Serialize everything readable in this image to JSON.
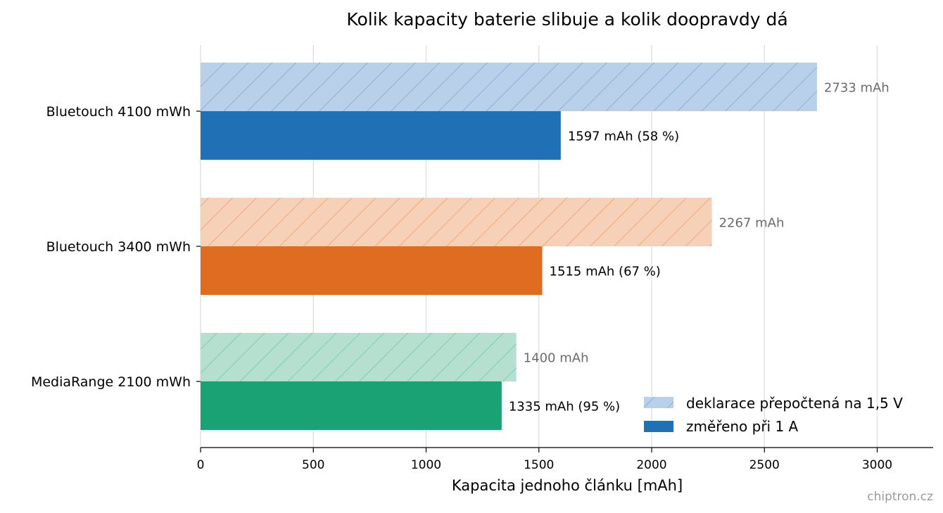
{
  "chart_data": {
    "type": "bar",
    "orientation": "horizontal",
    "title": "Kolik kapacity baterie slibuje a kolik doopravdy dá",
    "xlabel": "Kapacita jednoho článku [mAh]",
    "ylabel": "",
    "xlim": [
      0,
      3250
    ],
    "xticks": [
      0,
      500,
      1000,
      1500,
      2000,
      2500,
      3000
    ],
    "grid": "vertical",
    "legend_position": "bottom-right",
    "categories": [
      "Bluetouch 4100 mWh",
      "Bluetouch 3400 mWh",
      "MediaRange 2100 mWh"
    ],
    "series": [
      {
        "name": "deklarace přepočtená na 1,5 V",
        "style": "hatched-light",
        "values": [
          2733,
          2267,
          1400
        ],
        "labels": [
          "2733 mAh",
          "2267 mAh",
          "1400 mAh"
        ]
      },
      {
        "name": "změřeno při 1 A",
        "style": "solid",
        "values": [
          1597,
          1515,
          1335
        ],
        "labels": [
          "1597 mAh  (58 %)",
          "1515 mAh  (67 %)",
          "1335 mAh  (95 %)"
        ]
      }
    ],
    "colors": {
      "solid": [
        "#1f70b4",
        "#e06c21",
        "#1aa275"
      ],
      "light": [
        "#b8d0e9",
        "#f6d0b7",
        "#b5e0cf"
      ],
      "hatch": [
        "#8fb0d4",
        "#eeaa7e",
        "#83cbb1"
      ]
    }
  },
  "credit": "chiptron.cz"
}
